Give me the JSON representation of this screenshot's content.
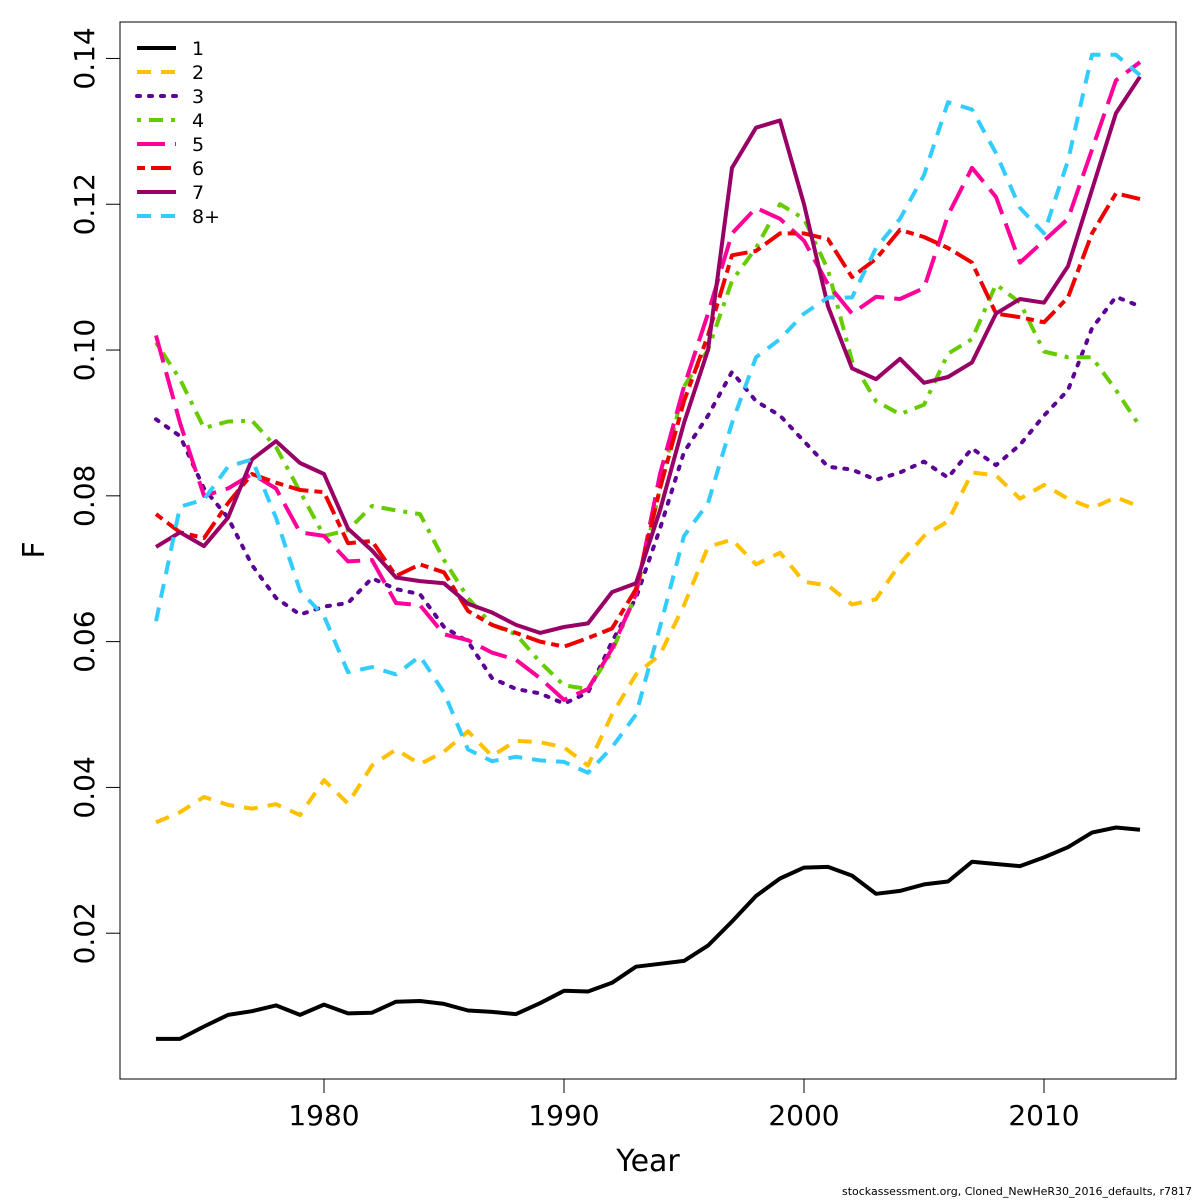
{
  "chart_data": {
    "type": "line",
    "xlabel": "Year",
    "ylabel": "F",
    "xlim": [
      1971.5,
      2015.5
    ],
    "ylim": [
      0.0,
      0.145
    ],
    "x_ticks": [
      1980,
      1990,
      2000,
      2010
    ],
    "y_ticks": [
      0.02,
      0.04,
      0.06,
      0.08,
      0.1,
      0.12,
      0.14
    ],
    "y_tick_labels": [
      "0.02",
      "0.04",
      "0.06",
      "0.08",
      "0.10",
      "0.12",
      "0.14"
    ],
    "legend_position": "top-left",
    "grid": false,
    "x": [
      1973,
      1974,
      1975,
      1976,
      1977,
      1978,
      1979,
      1980,
      1981,
      1982,
      1983,
      1984,
      1985,
      1986,
      1987,
      1988,
      1989,
      1990,
      1991,
      1992,
      1993,
      1994,
      1995,
      1996,
      1997,
      1998,
      1999,
      2000,
      2001,
      2002,
      2003,
      2004,
      2005,
      2006,
      2007,
      2008,
      2009,
      2010,
      2011,
      2012,
      2013,
      2014
    ],
    "series": [
      {
        "name": "1",
        "color": "#000000",
        "dash": "solid",
        "values": [
          0.0055,
          0.0055,
          0.0072,
          0.0088,
          0.0093,
          0.0101,
          0.0088,
          0.0102,
          0.009,
          0.0091,
          0.0106,
          0.0107,
          0.0103,
          0.0094,
          0.0092,
          0.0089,
          0.0104,
          0.0121,
          0.012,
          0.0132,
          0.0154,
          0.0158,
          0.0162,
          0.0183,
          0.0216,
          0.0251,
          0.0275,
          0.029,
          0.0291,
          0.0279,
          0.0254,
          0.0258,
          0.0267,
          0.0271,
          0.0298,
          0.0295,
          0.0292,
          0.0304,
          0.0318,
          0.0338,
          0.0345,
          0.0342
        ]
      },
      {
        "name": "2",
        "color": "#ffc000",
        "dash": "dashed",
        "values": [
          0.0352,
          0.0366,
          0.0387,
          0.0376,
          0.0371,
          0.0377,
          0.0362,
          0.041,
          0.0378,
          0.043,
          0.0452,
          0.0432,
          0.0449,
          0.0477,
          0.0443,
          0.0464,
          0.0462,
          0.0455,
          0.043,
          0.05,
          0.0555,
          0.0582,
          0.065,
          0.073,
          0.074,
          0.0706,
          0.0722,
          0.0682,
          0.0677,
          0.0651,
          0.0658,
          0.0707,
          0.0745,
          0.0765,
          0.0832,
          0.0828,
          0.0796,
          0.0815,
          0.0796,
          0.0783,
          0.0798,
          0.0785
        ]
      },
      {
        "name": "3",
        "color": "#5c0096",
        "dash": "dotted",
        "values": [
          0.0905,
          0.0882,
          0.081,
          0.077,
          0.0705,
          0.066,
          0.0637,
          0.0648,
          0.0653,
          0.0687,
          0.0672,
          0.0665,
          0.062,
          0.06,
          0.055,
          0.0535,
          0.0529,
          0.0515,
          0.053,
          0.06,
          0.066,
          0.0755,
          0.086,
          0.091,
          0.097,
          0.093,
          0.091,
          0.0875,
          0.084,
          0.0836,
          0.0822,
          0.0832,
          0.0847,
          0.0825,
          0.0865,
          0.0842,
          0.087,
          0.091,
          0.0945,
          0.103,
          0.1073,
          0.106
        ]
      },
      {
        "name": "4",
        "color": "#66cc00",
        "dash": "dashdot",
        "values": [
          0.101,
          0.096,
          0.0893,
          0.0902,
          0.0903,
          0.0867,
          0.0806,
          0.0745,
          0.0753,
          0.0786,
          0.078,
          0.0775,
          0.0712,
          0.066,
          0.0623,
          0.061,
          0.0572,
          0.054,
          0.0535,
          0.0586,
          0.0665,
          0.081,
          0.095,
          0.1,
          0.1095,
          0.114,
          0.12,
          0.118,
          0.111,
          0.0985,
          0.093,
          0.0912,
          0.0925,
          0.0995,
          0.1015,
          0.109,
          0.1065,
          0.0998,
          0.099,
          0.099,
          0.0945,
          0.0895
        ]
      },
      {
        "name": "5",
        "color": "#ff0099",
        "dash": "longdash",
        "values": [
          0.102,
          0.09,
          0.08,
          0.081,
          0.083,
          0.081,
          0.075,
          0.0745,
          0.071,
          0.0712,
          0.0653,
          0.065,
          0.061,
          0.0602,
          0.0585,
          0.0575,
          0.055,
          0.052,
          0.0535,
          0.059,
          0.0665,
          0.083,
          0.095,
          0.105,
          0.116,
          0.1195,
          0.118,
          0.115,
          0.109,
          0.105,
          0.1073,
          0.107,
          0.1085,
          0.1185,
          0.125,
          0.121,
          0.112,
          0.115,
          0.118,
          0.1275,
          0.137,
          0.1395
        ]
      },
      {
        "name": "6",
        "color": "#ee0000",
        "dash": "twodash",
        "values": [
          0.0775,
          0.075,
          0.0742,
          0.079,
          0.083,
          0.0818,
          0.0808,
          0.0805,
          0.0735,
          0.0738,
          0.069,
          0.0706,
          0.0695,
          0.0642,
          0.0623,
          0.0612,
          0.06,
          0.0593,
          0.0605,
          0.0618,
          0.0672,
          0.081,
          0.093,
          0.102,
          0.113,
          0.1136,
          0.116,
          0.116,
          0.1152,
          0.11,
          0.1125,
          0.1165,
          0.1155,
          0.114,
          0.112,
          0.105,
          0.1045,
          0.1038,
          0.1072,
          0.116,
          0.1215,
          0.1207
        ]
      },
      {
        "name": "7",
        "color": "#990066",
        "dash": "solid",
        "values": [
          0.073,
          0.075,
          0.0731,
          0.077,
          0.085,
          0.0875,
          0.0845,
          0.083,
          0.0755,
          0.0725,
          0.0688,
          0.0683,
          0.068,
          0.0652,
          0.064,
          0.0623,
          0.0612,
          0.062,
          0.0625,
          0.0668,
          0.068,
          0.078,
          0.09,
          0.1,
          0.125,
          0.1305,
          0.1315,
          0.12,
          0.106,
          0.0975,
          0.096,
          0.0988,
          0.0955,
          0.0963,
          0.0983,
          0.105,
          0.107,
          0.1065,
          0.1115,
          0.122,
          0.1325,
          0.1375
        ]
      },
      {
        "name": "8+",
        "color": "#33ccff",
        "dash": "dashed",
        "values": [
          0.0628,
          0.0785,
          0.0795,
          0.084,
          0.085,
          0.077,
          0.067,
          0.0635,
          0.0558,
          0.0565,
          0.0555,
          0.058,
          0.053,
          0.0452,
          0.0436,
          0.0442,
          0.0437,
          0.0435,
          0.042,
          0.0455,
          0.05,
          0.062,
          0.0745,
          0.079,
          0.09,
          0.099,
          0.1015,
          0.105,
          0.1072,
          0.1072,
          0.114,
          0.118,
          0.124,
          0.134,
          0.133,
          0.127,
          0.1195,
          0.116,
          0.126,
          0.1405,
          0.1405,
          0.1377
        ]
      }
    ]
  },
  "footer": "stockassessment.org, Cloned_NewHeR30_2016_defaults, r7817"
}
